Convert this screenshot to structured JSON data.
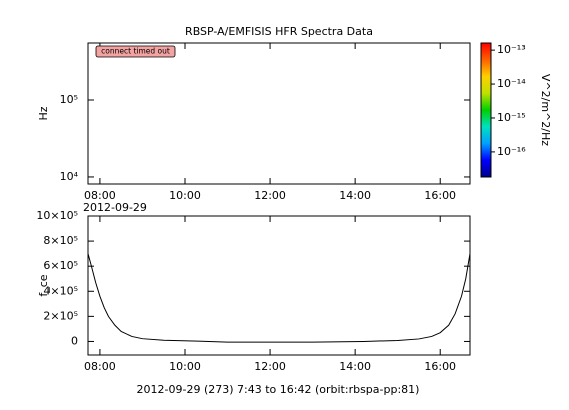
{
  "chart_data": [
    {
      "type": "spectrogram",
      "title": "RBSP-A/EMFISIS  HFR Spectra Data",
      "ylabel": "Hz",
      "log_y": true,
      "ylim": [
        8100,
        550000
      ],
      "yticks": [
        {
          "value": 10000,
          "label": "10⁴"
        },
        {
          "value": 100000,
          "label": "10⁵"
        }
      ],
      "xlim": [
        7.72,
        16.7
      ],
      "xticks": [
        {
          "value": 8,
          "label": "08:00"
        },
        {
          "value": 10,
          "label": "10:00"
        },
        {
          "value": 12,
          "label": "12:00"
        },
        {
          "value": 14,
          "label": "14:00"
        },
        {
          "value": 16,
          "label": "16:00"
        }
      ],
      "date_label": "2012-09-29",
      "annotation": "connect timed out",
      "colorbar": {
        "label": "V^2/m^2/Hz",
        "lim": [
          -16.74,
          -12.79
        ],
        "ticks": [
          {
            "value": -13,
            "label": "10⁻¹³"
          },
          {
            "value": -14,
            "label": "10⁻¹⁴"
          },
          {
            "value": -15,
            "label": "10⁻¹⁵"
          },
          {
            "value": -16,
            "label": "10⁻¹⁶"
          }
        ],
        "colors": [
          "#00008c",
          "#0000ff",
          "#00a0ff",
          "#00e0c0",
          "#00d000",
          "#c0e000",
          "#ffd000",
          "#ff6000",
          "#ff0000"
        ]
      }
    },
    {
      "type": "line",
      "ylabel": "f_ce",
      "color": "#000000",
      "ylim": [
        -108000,
        1000000
      ],
      "yticks": [
        0,
        {
          "value": 200000,
          "label": "2×10⁵"
        },
        {
          "value": 400000,
          "label": "4×10⁵"
        },
        {
          "value": 600000,
          "label": "6×10⁵"
        },
        {
          "value": 800000,
          "label": "8×10⁵"
        },
        {
          "value": 1000000,
          "label": "10×10⁵"
        }
      ],
      "xlim": [
        7.72,
        16.7
      ],
      "xticks": [
        {
          "value": 8,
          "label": "08:00"
        },
        {
          "value": 10,
          "label": "10:00"
        },
        {
          "value": 12,
          "label": "12:00"
        },
        {
          "value": 14,
          "label": "14:00"
        },
        {
          "value": 16,
          "label": "16:00"
        }
      ],
      "xlabel": "2012-09-29 (273) 7:43 to 16:42 (orbit:rbspa-pp:81)",
      "x": [
        7.72,
        7.8,
        7.9,
        8.0,
        8.1,
        8.2,
        8.35,
        8.5,
        8.75,
        9.0,
        9.5,
        10.3,
        11,
        12,
        13,
        14.2,
        15,
        15.5,
        15.8,
        16.0,
        16.2,
        16.35,
        16.5,
        16.6,
        16.7
      ],
      "values": [
        700000,
        600000,
        470000,
        360000,
        270000,
        200000,
        130000,
        80000,
        40000,
        22000,
        10000,
        3000,
        -5000,
        -5000,
        -5000,
        0,
        8000,
        20000,
        40000,
        70000,
        130000,
        220000,
        360000,
        500000,
        700000
      ]
    }
  ]
}
